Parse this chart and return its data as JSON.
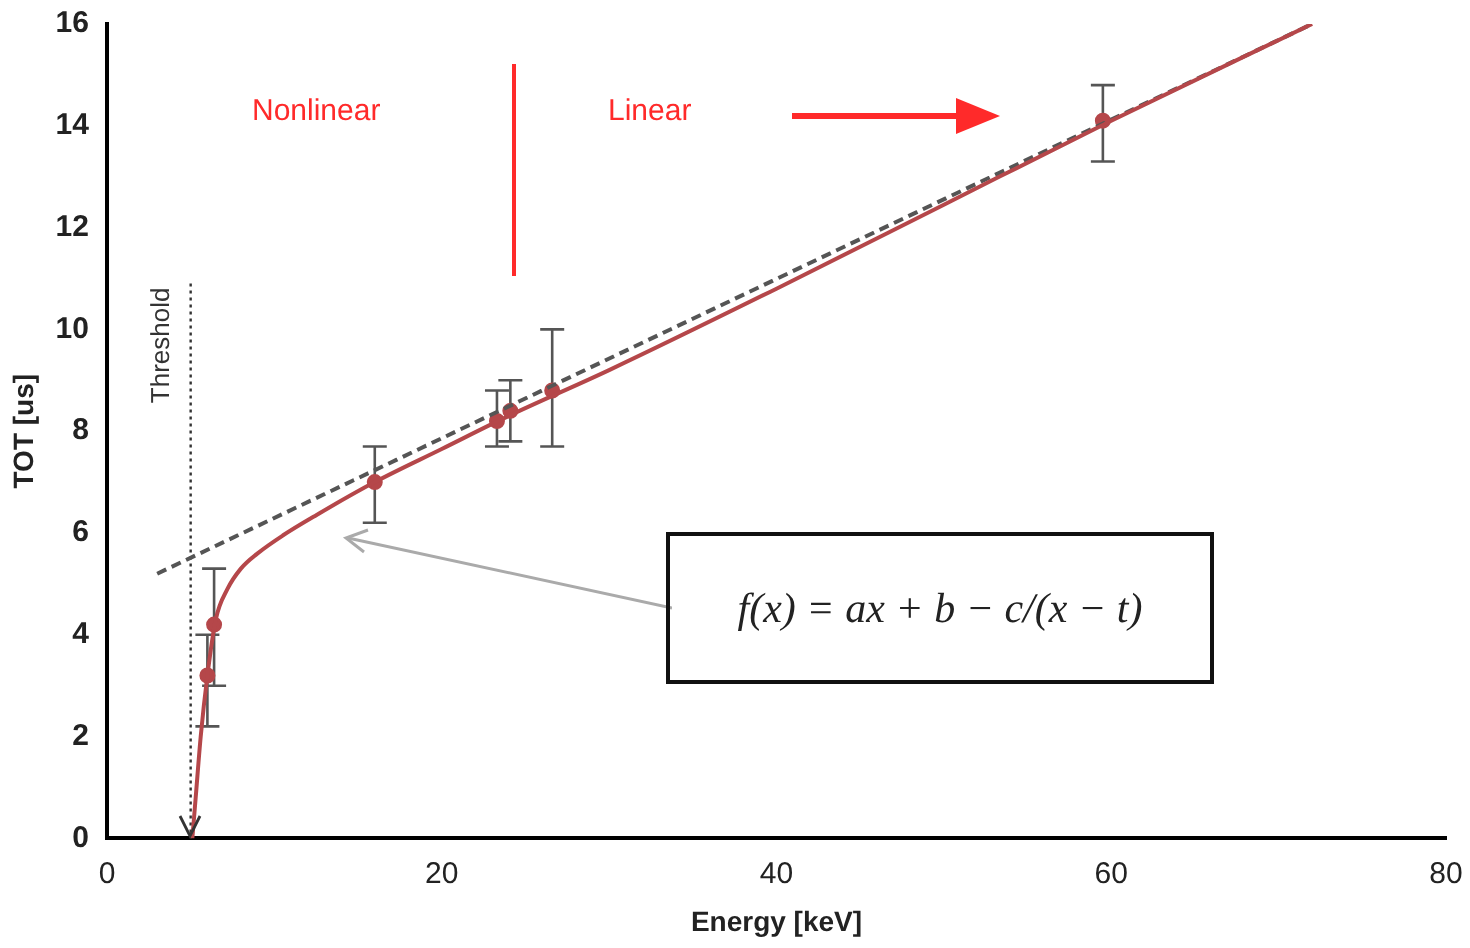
{
  "chart_data": {
    "type": "scatter",
    "xlabel": "Energy [keV]",
    "ylabel": "TOT [us]",
    "xlim": [
      0,
      80
    ],
    "ylim": [
      0,
      16
    ],
    "xticks": [
      0,
      20,
      40,
      60,
      80
    ],
    "yticks": [
      0,
      2,
      4,
      6,
      8,
      10,
      12,
      14,
      16
    ],
    "grid": false,
    "legend": false,
    "series": [
      {
        "type": "line",
        "color": "#b5474a",
        "line_style": "solid",
        "marker": "none",
        "x": [
          5.1,
          5.3,
          5.6,
          6.0,
          6.5,
          7.2,
          8.0,
          9.0,
          10.5,
          12.5,
          16,
          20,
          24,
          30,
          40,
          50,
          60,
          72
        ],
        "values": [
          0,
          0.8,
          2.0,
          3.2,
          4.3,
          4.9,
          5.3,
          5.6,
          5.95,
          6.35,
          7.0,
          7.65,
          8.3,
          9.2,
          10.8,
          12.45,
          14.1,
          16.0
        ]
      },
      {
        "type": "line",
        "color": "#555555",
        "line_style": "dashed",
        "marker": "none",
        "x": [
          3,
          72
        ],
        "values": [
          5.2,
          16.0
        ]
      },
      {
        "marker": "circle",
        "color": "#b5474a",
        "x": [
          6.0,
          6.4,
          16,
          23.3,
          24.1,
          26.6,
          59.5
        ],
        "values": [
          3.2,
          4.2,
          7.0,
          8.2,
          8.4,
          8.8,
          14.1
        ],
        "errors": [
          [
            2.2,
            4.0
          ],
          [
            3.0,
            5.3
          ],
          [
            6.2,
            7.7
          ],
          [
            7.7,
            8.8
          ],
          [
            7.8,
            9.0
          ],
          [
            7.7,
            10.0
          ],
          [
            13.3,
            14.8
          ]
        ]
      }
    ],
    "ref_lines": [
      {
        "axis": "x",
        "value": 5,
        "label": "Threshold",
        "line_style": "dotted",
        "color": "#333333"
      }
    ],
    "annotations": [
      "Nonlinear",
      "Linear",
      "f(x) = ax + b − c/(x − t)"
    ]
  }
}
